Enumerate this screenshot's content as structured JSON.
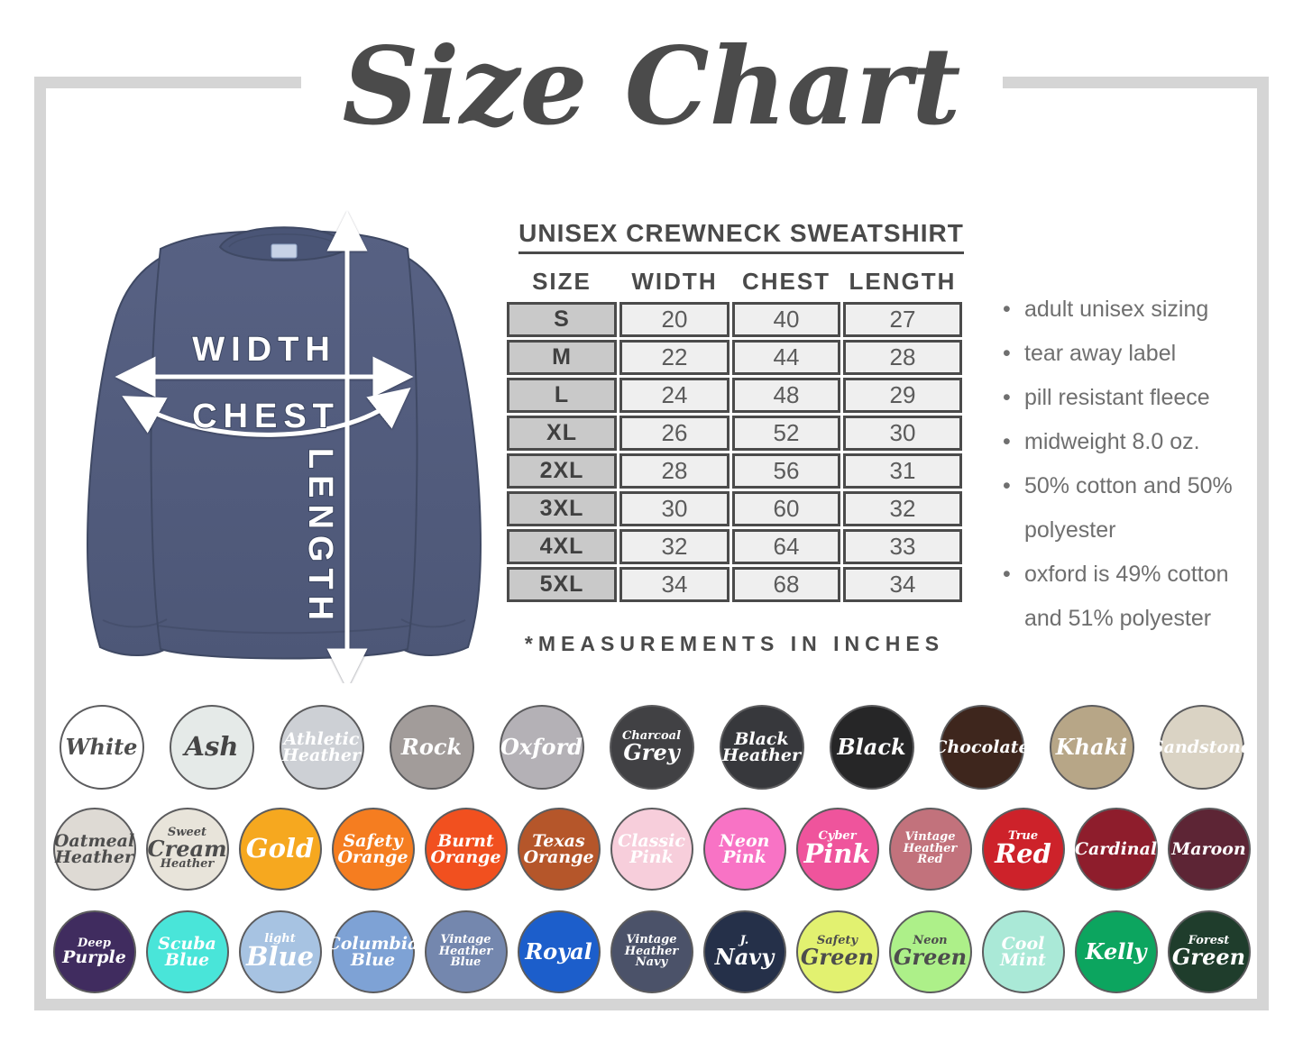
{
  "title": "Size Chart",
  "frame_color": "#d5d5d5",
  "product": {
    "heading": "UNISEX CREWNECK SWEATSHIRT",
    "table": {
      "columns": [
        "SIZE",
        "WIDTH",
        "CHEST",
        "LENGTH"
      ],
      "rows": [
        {
          "size": "S",
          "width": "20",
          "chest": "40",
          "length": "27"
        },
        {
          "size": "M",
          "width": "22",
          "chest": "44",
          "length": "28"
        },
        {
          "size": "L",
          "width": "24",
          "chest": "48",
          "length": "29"
        },
        {
          "size": "XL",
          "width": "26",
          "chest": "52",
          "length": "30"
        },
        {
          "size": "2XL",
          "width": "28",
          "chest": "56",
          "length": "31"
        },
        {
          "size": "3XL",
          "width": "30",
          "chest": "60",
          "length": "32"
        },
        {
          "size": "4XL",
          "width": "32",
          "chest": "64",
          "length": "33"
        },
        {
          "size": "5XL",
          "width": "34",
          "chest": "68",
          "length": "34"
        }
      ],
      "footnote": "*MEASUREMENTS IN INCHES"
    },
    "bullets": [
      "adult unisex sizing",
      "tear away label",
      "pill resistant fleece",
      "midweight 8.0 oz.",
      "50% cotton and 50% polyester",
      "oxford is 49% cotton and 51% polyester"
    ]
  },
  "diagram": {
    "labels": {
      "width": "WIDTH",
      "chest": "CHEST",
      "length": "LENGTH"
    },
    "shirt_color": "#525c7d",
    "shirt_shade": "#49536f",
    "arrow_color": "#ffffff"
  },
  "swatches": {
    "rows": [
      [
        {
          "name": "White",
          "bg": "#ffffff",
          "fg": "#4d4d4d",
          "lines": [
            [
              "White",
              "lg"
            ]
          ]
        },
        {
          "name": "Ash",
          "bg": "#e5eae8",
          "fg": "#454545",
          "lines": [
            [
              "Ash",
              "xl"
            ]
          ]
        },
        {
          "name": "Athletic Heather",
          "bg": "#cdd0d5",
          "fg": "#ffffff",
          "lines": [
            [
              "Athletic",
              "md"
            ],
            [
              "Heather",
              "md"
            ]
          ]
        },
        {
          "name": "Rock",
          "bg": "#a29c9a",
          "fg": "#ffffff",
          "lines": [
            [
              "Rock",
              "lg"
            ]
          ]
        },
        {
          "name": "Oxford",
          "bg": "#b4b1b6",
          "fg": "#ffffff",
          "lines": [
            [
              "Oxford",
              "lg"
            ]
          ]
        },
        {
          "name": "Charcoal Grey",
          "bg": "#414144",
          "fg": "#ffffff",
          "lines": [
            [
              "Charcoal",
              "sm"
            ],
            [
              "Grey",
              "lg"
            ]
          ]
        },
        {
          "name": "Black Heather",
          "bg": "#37383c",
          "fg": "#ffffff",
          "lines": [
            [
              "Black",
              "md"
            ],
            [
              "Heather",
              "md"
            ]
          ]
        },
        {
          "name": "Black",
          "bg": "#262627",
          "fg": "#ffffff",
          "lines": [
            [
              "Black",
              "lg"
            ]
          ]
        },
        {
          "name": "Chocolate",
          "bg": "#3e261d",
          "fg": "#ffffff",
          "lines": [
            [
              "Chocolate",
              "md"
            ]
          ]
        },
        {
          "name": "Khaki",
          "bg": "#b7a687",
          "fg": "#ffffff",
          "lines": [
            [
              "Khaki",
              "lg"
            ]
          ]
        },
        {
          "name": "Sandstone",
          "bg": "#dad3c4",
          "fg": "#ffffff",
          "lines": [
            [
              "Sandstone",
              "md"
            ]
          ]
        }
      ],
      [
        {
          "name": "Oatmeal Heather",
          "bg": "#dedad4",
          "fg": "#4d4d4d",
          "lines": [
            [
              "Oatmeal",
              "md"
            ],
            [
              "Heather",
              "md"
            ]
          ]
        },
        {
          "name": "Sweet Cream Heather",
          "bg": "#e8e4da",
          "fg": "#4d4d4d",
          "lines": [
            [
              "Sweet",
              "sm"
            ],
            [
              "Cream",
              "lg"
            ],
            [
              "Heather",
              "sm"
            ]
          ]
        },
        {
          "name": "Gold",
          "bg": "#f6a81f",
          "fg": "#ffffff",
          "lines": [
            [
              "Gold",
              "xl"
            ]
          ]
        },
        {
          "name": "Safety Orange",
          "bg": "#f57d20",
          "fg": "#ffffff",
          "lines": [
            [
              "Safety",
              "md"
            ],
            [
              "Orange",
              "md"
            ]
          ]
        },
        {
          "name": "Burnt Orange",
          "bg": "#f1501f",
          "fg": "#ffffff",
          "lines": [
            [
              "Burnt",
              "md"
            ],
            [
              "Orange",
              "md"
            ]
          ]
        },
        {
          "name": "Texas Orange",
          "bg": "#b5562a",
          "fg": "#ffffff",
          "lines": [
            [
              "Texas",
              "md"
            ],
            [
              "Orange",
              "md"
            ]
          ]
        },
        {
          "name": "Classic Pink",
          "bg": "#f7cedb",
          "fg": "#ffffff",
          "lines": [
            [
              "Classic",
              "md"
            ],
            [
              "Pink",
              "md"
            ]
          ]
        },
        {
          "name": "Neon Pink",
          "bg": "#f873c5",
          "fg": "#ffffff",
          "lines": [
            [
              "Neon",
              "md"
            ],
            [
              "Pink",
              "md"
            ]
          ]
        },
        {
          "name": "Cyber Pink",
          "bg": "#ef549c",
          "fg": "#ffffff",
          "lines": [
            [
              "Cyber",
              "sm"
            ],
            [
              "Pink",
              "xl"
            ]
          ]
        },
        {
          "name": "Vintage Heather Red",
          "bg": "#c2727c",
          "fg": "#ffffff",
          "lines": [
            [
              "Vintage",
              "sm"
            ],
            [
              "Heather",
              "sm"
            ],
            [
              "Red",
              "sm"
            ]
          ]
        },
        {
          "name": "True Red",
          "bg": "#cd222a",
          "fg": "#ffffff",
          "lines": [
            [
              "True",
              "sm"
            ],
            [
              "Red",
              "xl"
            ]
          ]
        },
        {
          "name": "Cardinal",
          "bg": "#8e1d2c",
          "fg": "#ffffff",
          "lines": [
            [
              "Cardinal",
              "md"
            ]
          ]
        },
        {
          "name": "Maroon",
          "bg": "#5d2535",
          "fg": "#ffffff",
          "lines": [
            [
              "Maroon",
              "md"
            ]
          ]
        }
      ],
      [
        {
          "name": "Deep Purple",
          "bg": "#402c5f",
          "fg": "#ffffff",
          "lines": [
            [
              "Deep",
              "sm"
            ],
            [
              "Purple",
              "md"
            ]
          ]
        },
        {
          "name": "Scuba Blue",
          "bg": "#49e5d9",
          "fg": "#ffffff",
          "lines": [
            [
              "Scuba",
              "md"
            ],
            [
              "Blue",
              "md"
            ]
          ]
        },
        {
          "name": "Light Blue",
          "bg": "#a7c3e2",
          "fg": "#ffffff",
          "lines": [
            [
              "light",
              "sm"
            ],
            [
              "Blue",
              "xl"
            ]
          ]
        },
        {
          "name": "Columbia Blue",
          "bg": "#7ea2d5",
          "fg": "#ffffff",
          "lines": [
            [
              "Columbia",
              "md"
            ],
            [
              "Blue",
              "md"
            ]
          ]
        },
        {
          "name": "Vintage Heather Blue",
          "bg": "#7487ae",
          "fg": "#ffffff",
          "lines": [
            [
              "Vintage",
              "sm"
            ],
            [
              "Heather",
              "sm"
            ],
            [
              "Blue",
              "sm"
            ]
          ]
        },
        {
          "name": "Royal",
          "bg": "#1c5ecb",
          "fg": "#ffffff",
          "lines": [
            [
              "Royal",
              "lg"
            ]
          ]
        },
        {
          "name": "Vintage Heather Navy",
          "bg": "#4b5269",
          "fg": "#ffffff",
          "lines": [
            [
              "Vintage",
              "sm"
            ],
            [
              "Heather",
              "sm"
            ],
            [
              "Navy",
              "sm"
            ]
          ]
        },
        {
          "name": "J. Navy",
          "bg": "#253049",
          "fg": "#ffffff",
          "lines": [
            [
              "J.",
              "sm"
            ],
            [
              "Navy",
              "lg"
            ]
          ]
        },
        {
          "name": "Safety Green",
          "bg": "#e2f170",
          "fg": "#4d4d4d",
          "lines": [
            [
              "Safety",
              "sm"
            ],
            [
              "Green",
              "lg"
            ]
          ]
        },
        {
          "name": "Neon Green",
          "bg": "#adf089",
          "fg": "#4d4d4d",
          "lines": [
            [
              "Neon",
              "sm"
            ],
            [
              "Green",
              "lg"
            ]
          ]
        },
        {
          "name": "Cool Mint",
          "bg": "#aae9d7",
          "fg": "#ffffff",
          "lines": [
            [
              "Cool",
              "md"
            ],
            [
              "Mint",
              "md"
            ]
          ]
        },
        {
          "name": "Kelly",
          "bg": "#0ca55f",
          "fg": "#ffffff",
          "lines": [
            [
              "Kelly",
              "lg"
            ]
          ]
        },
        {
          "name": "Forest Green",
          "bg": "#1f3d2c",
          "fg": "#ffffff",
          "lines": [
            [
              "Forest",
              "sm"
            ],
            [
              "Green",
              "lg"
            ]
          ]
        }
      ]
    ]
  }
}
